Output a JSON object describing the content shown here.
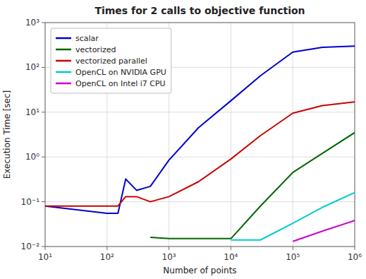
{
  "chart_data": {
    "type": "line",
    "title": "Times for 2 calls to objective function",
    "x_label": "Number of points",
    "y_label": "Execution Time [sec]",
    "log": true,
    "grid": true,
    "legend": "upper-left",
    "xlim": [
      10,
      1000000
    ],
    "ylim": [
      0.01,
      1000
    ],
    "xticks": [
      {
        "value": 10,
        "label": "10¹"
      },
      {
        "value": 100,
        "label": "10²"
      },
      {
        "value": 1000,
        "label": "10³"
      },
      {
        "value": 10000,
        "label": "10⁴"
      },
      {
        "value": 100000,
        "label": "10⁵"
      },
      {
        "value": 1000000,
        "label": "10⁶"
      }
    ],
    "yticks": [
      {
        "value": 0.01,
        "label": "10⁻²"
      },
      {
        "value": 0.1,
        "label": "10⁻¹"
      },
      {
        "value": 1,
        "label": "10⁰"
      },
      {
        "value": 10,
        "label": "10¹"
      },
      {
        "value": 100,
        "label": "10²"
      },
      {
        "value": 1000,
        "label": "10³"
      }
    ],
    "series": [
      {
        "name": "scalar",
        "color": "#0000cc",
        "x": [
          10,
          100,
          150,
          200,
          300,
          500,
          1000,
          3000,
          10000,
          30000,
          100000,
          300000,
          1000000
        ],
        "values": [
          0.08,
          0.055,
          0.055,
          0.32,
          0.18,
          0.22,
          0.85,
          4.5,
          18.0,
          65.0,
          220.0,
          280.0,
          300.0
        ]
      },
      {
        "name": "vectorized",
        "color": "#006600",
        "x": [
          500,
          1000,
          3000,
          10000,
          30000,
          100000,
          300000,
          1000000
        ],
        "values": [
          0.016,
          0.015,
          0.015,
          0.015,
          0.08,
          0.45,
          1.2,
          3.5
        ]
      },
      {
        "name": "vectorized parallel",
        "color": "#cc0000",
        "x": [
          10,
          100,
          150,
          200,
          300,
          500,
          1000,
          3000,
          10000,
          30000,
          100000,
          300000,
          1000000
        ],
        "values": [
          0.08,
          0.08,
          0.08,
          0.13,
          0.13,
          0.1,
          0.13,
          0.28,
          0.9,
          3.0,
          9.5,
          14.0,
          17.0
        ]
      },
      {
        "name": "OpenCL on NVIDIA GPU",
        "color": "#00cccc",
        "x": [
          10000,
          30000,
          100000,
          300000,
          1000000
        ],
        "values": [
          0.014,
          0.014,
          0.033,
          0.075,
          0.16
        ]
      },
      {
        "name": "OpenCL on Intel i7 CPU",
        "color": "#cc00cc",
        "x": [
          100000,
          300000,
          1000000
        ],
        "values": [
          0.013,
          0.022,
          0.038
        ]
      }
    ]
  }
}
